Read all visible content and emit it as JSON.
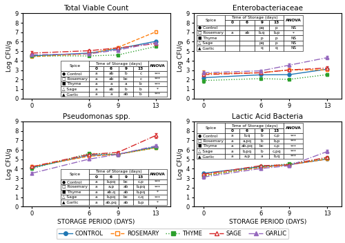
{
  "chart_data": [
    {
      "type": "line",
      "title": "Total Viable Count",
      "ylabel": "Log CFU/g",
      "x": [
        0,
        6,
        9,
        13
      ],
      "xlim": [
        -1,
        14.5
      ],
      "xticks": [
        0,
        6,
        9,
        13
      ],
      "ylim": [
        0,
        9
      ],
      "yticks": [
        0,
        1,
        2,
        3,
        4,
        5,
        6,
        7,
        8,
        9
      ],
      "grid": false,
      "legend": "lower center",
      "series": [
        {
          "name": "CONTROL",
          "marker": "filled circle",
          "line_style": "solid",
          "values": [
            4.5,
            4.8,
            5.25,
            6.05
          ],
          "errors": [
            0.15,
            0.12,
            0.15,
            0.1
          ]
        },
        {
          "name": "ROSEMARY",
          "marker": "open square",
          "line_style": "dashed",
          "values": [
            4.42,
            4.72,
            5.4,
            7.05
          ],
          "errors": [
            0.1,
            0.1,
            0.15,
            0.12
          ]
        },
        {
          "name": "THYME",
          "marker": "filled square",
          "line_style": "dotted",
          "values": [
            4.5,
            4.5,
            4.6,
            5.5
          ],
          "errors": [
            0.08,
            0.08,
            0.1,
            0.15
          ]
        },
        {
          "name": "SAGE",
          "marker": "open triangle",
          "line_style": "dashdot",
          "values": [
            4.8,
            5.05,
            5.35,
            5.8
          ],
          "errors": [
            0.2,
            0.12,
            0.12,
            0.18
          ]
        },
        {
          "name": "GARLIC",
          "marker": "filled triangle",
          "line_style": "dashdot",
          "values": [
            4.62,
            4.72,
            5.12,
            5.92
          ],
          "errors": [
            0.12,
            0.1,
            0.12,
            0.12
          ]
        }
      ],
      "table": {
        "row_header": "Spice",
        "col_header": "Time of Storage (days)",
        "col_labels": [
          "0",
          "6",
          "9",
          "13",
          "ANOVA"
        ],
        "rows": [
          [
            "● Control",
            "a",
            "ab",
            "b",
            "c",
            "***"
          ],
          [
            "□ Rosemary",
            "a",
            "ab",
            "bc",
            "c",
            "***"
          ],
          [
            "■ Thyme",
            "a",
            "a",
            "a",
            "b",
            "***"
          ],
          [
            "△ Sage",
            "a",
            "ab",
            "b",
            "b",
            "*"
          ],
          [
            "▲ Garlic",
            "a",
            "a",
            "ab",
            "b",
            "***"
          ]
        ]
      }
    },
    {
      "type": "line",
      "title": "Enterobacteriaceae",
      "ylabel": "Log CFU/g",
      "x": [
        0,
        6,
        9,
        13
      ],
      "xlim": [
        -1,
        14.5
      ],
      "xticks": [
        0,
        6,
        9,
        13
      ],
      "ylim": [
        0,
        9
      ],
      "yticks": [
        0,
        1,
        2,
        3,
        4,
        5,
        6,
        7,
        8,
        9
      ],
      "grid": false,
      "legend": "lower center",
      "series": [
        {
          "name": "CONTROL",
          "marker": "filled circle",
          "line_style": "solid",
          "values": [
            2.2,
            2.5,
            2.52,
            3.1
          ],
          "errors": [
            0.2,
            0.15,
            0.15,
            0.15
          ]
        },
        {
          "name": "ROSEMARY",
          "marker": "open square",
          "line_style": "dashed",
          "values": [
            2.62,
            2.72,
            3.02,
            3.02
          ],
          "errors": [
            0.35,
            0.15,
            0.15,
            0.15
          ]
        },
        {
          "name": "THYME",
          "marker": "filled square",
          "line_style": "dotted",
          "values": [
            1.9,
            2.1,
            2.02,
            2.52
          ],
          "errors": [
            0.25,
            0.1,
            0.1,
            0.15
          ]
        },
        {
          "name": "SAGE",
          "marker": "open triangle",
          "line_style": "dashdot",
          "values": [
            2.52,
            2.72,
            3.02,
            3.22
          ],
          "errors": [
            0.15,
            0.12,
            0.12,
            0.15
          ]
        },
        {
          "name": "GARLIC",
          "marker": "filled triangle",
          "line_style": "dashdot",
          "values": [
            2.72,
            2.92,
            3.52,
            4.32
          ],
          "errors": [
            0.15,
            0.12,
            0.18,
            0.2
          ]
        }
      ],
      "table": {
        "row_header": "Spice",
        "col_header": "Time of Storage (days)",
        "col_labels": [
          "0",
          "6",
          "9",
          "13",
          "ANOVA"
        ],
        "rows": [
          [
            "● Control",
            null,
            null,
            "pq",
            "p",
            "NS"
          ],
          [
            "□ Rosemary",
            "a",
            "ab",
            "b,q",
            "b,p",
            "*"
          ],
          [
            "■ Thyme",
            null,
            null,
            "p",
            "p",
            "NS"
          ],
          [
            "△ Sage",
            null,
            null,
            "pq",
            "p",
            "NS"
          ],
          [
            "▲ Garlic",
            null,
            null,
            "q",
            "q",
            "NS"
          ]
        ]
      }
    },
    {
      "type": "line",
      "title": "Pseudomonas spp.",
      "ylabel": "Log CFU/g",
      "xlabel": "STORAGE PERIOD (DAYS)",
      "x": [
        0,
        6,
        9,
        13
      ],
      "xlim": [
        -1,
        14.5
      ],
      "xticks": [
        0,
        6,
        9,
        13
      ],
      "ylim": [
        0,
        9
      ],
      "yticks": [
        0,
        1,
        2,
        3,
        4,
        5,
        6,
        7,
        8,
        9
      ],
      "grid": false,
      "legend": "lower center",
      "series": [
        {
          "name": "CONTROL",
          "marker": "filled circle",
          "line_style": "solid",
          "values": [
            4.12,
            5.42,
            5.52,
            6.32
          ],
          "errors": [
            0.12,
            0.15,
            0.15,
            0.15
          ]
        },
        {
          "name": "ROSEMARY",
          "marker": "open square",
          "line_style": "dashed",
          "values": [
            4.22,
            5.32,
            5.52,
            6.22
          ],
          "errors": [
            0.1,
            0.12,
            0.15,
            0.18
          ]
        },
        {
          "name": "THYME",
          "marker": "filled square",
          "line_style": "dotted",
          "values": [
            4.02,
            5.62,
            5.52,
            6.22
          ],
          "errors": [
            0.12,
            0.12,
            0.18,
            0.15
          ]
        },
        {
          "name": "SAGE",
          "marker": "open triangle",
          "line_style": "dashdot",
          "values": [
            4.22,
            5.52,
            5.72,
            7.52
          ],
          "errors": [
            0.15,
            0.12,
            0.15,
            0.25
          ]
        },
        {
          "name": "GARLIC",
          "marker": "filled triangle",
          "line_style": "dashdot",
          "values": [
            3.52,
            5.02,
            5.52,
            6.42
          ],
          "errors": [
            0.18,
            0.12,
            0.15,
            0.2
          ]
        }
      ],
      "table": {
        "row_header": "Spice",
        "col_header": "Time of Storage (days)",
        "col_labels": [
          "0",
          "6",
          "9",
          "13",
          "ANOVA"
        ],
        "rows": [
          [
            "● Control",
            "a",
            "b,pq",
            "bc",
            "c,p",
            "***"
          ],
          [
            "□ Rosemary",
            "a",
            "a,p",
            "ab",
            "b,pq",
            "***"
          ],
          [
            "■ Thyme",
            "a",
            "ab,q",
            "ab",
            "b,pq",
            "*"
          ],
          [
            "△ Sage",
            "a",
            "b,pq",
            "bc",
            "c,q",
            "***"
          ],
          [
            "▲ Garlic",
            "a",
            "ab,pq",
            "ab",
            "b,p",
            "*"
          ]
        ]
      }
    },
    {
      "type": "line",
      "title": "Lactic Acid Bacteria",
      "ylabel": "Log CFU/g",
      "xlabel": "STORAGE PERIOD (DAYS)",
      "x": [
        0,
        6,
        9,
        13
      ],
      "xlim": [
        -1,
        14.5
      ],
      "xticks": [
        0,
        6,
        9,
        13
      ],
      "ylim": [
        0,
        9
      ],
      "yticks": [
        0,
        1,
        2,
        3,
        4,
        5,
        6,
        7,
        8,
        9
      ],
      "grid": false,
      "legend": "lower center",
      "series": [
        {
          "name": "CONTROL",
          "marker": "filled circle",
          "line_style": "solid",
          "values": [
            3.52,
            4.22,
            4.42,
            5.02
          ],
          "errors": [
            0.12,
            0.12,
            0.12,
            0.15
          ]
        },
        {
          "name": "ROSEMARY",
          "marker": "open square",
          "line_style": "dashed",
          "values": [
            3.32,
            4.12,
            4.42,
            5.02
          ],
          "errors": [
            0.1,
            0.1,
            0.12,
            0.12
          ]
        },
        {
          "name": "THYME",
          "marker": "filled square",
          "line_style": "dotted",
          "values": [
            3.22,
            4.22,
            4.52,
            5.12
          ],
          "errors": [
            0.12,
            0.1,
            0.12,
            0.15
          ]
        },
        {
          "name": "SAGE",
          "marker": "open triangle",
          "line_style": "dashdot",
          "values": [
            3.42,
            4.32,
            4.42,
            5.22
          ],
          "errors": [
            0.1,
            0.1,
            0.1,
            0.12
          ]
        },
        {
          "name": "GARLIC",
          "marker": "filled triangle",
          "line_style": "dashdot",
          "values": [
            3.12,
            4.02,
            4.32,
            5.82
          ],
          "errors": [
            0.15,
            0.12,
            0.12,
            0.18
          ]
        }
      ],
      "table": {
        "row_header": "Spice",
        "col_header": "Time of Storage (days)",
        "col_labels": [
          "0",
          "6",
          "9",
          "13",
          "ANOVA"
        ],
        "rows": [
          [
            "● Control",
            "a",
            "b,q",
            "b",
            "c,p",
            "***"
          ],
          [
            "□ Rosemary",
            "a",
            "a,pq",
            "b",
            "b,p",
            "***"
          ],
          [
            "■ Thyme",
            "a",
            "ab,pq",
            "bc",
            "c,p",
            "***"
          ],
          [
            "△ Sage",
            "a",
            "b,pq",
            "b",
            "c,pq",
            "***"
          ],
          [
            "▲ Garlic",
            "a",
            "a,p",
            "a",
            "b,q",
            "***"
          ]
        ]
      }
    }
  ]
}
